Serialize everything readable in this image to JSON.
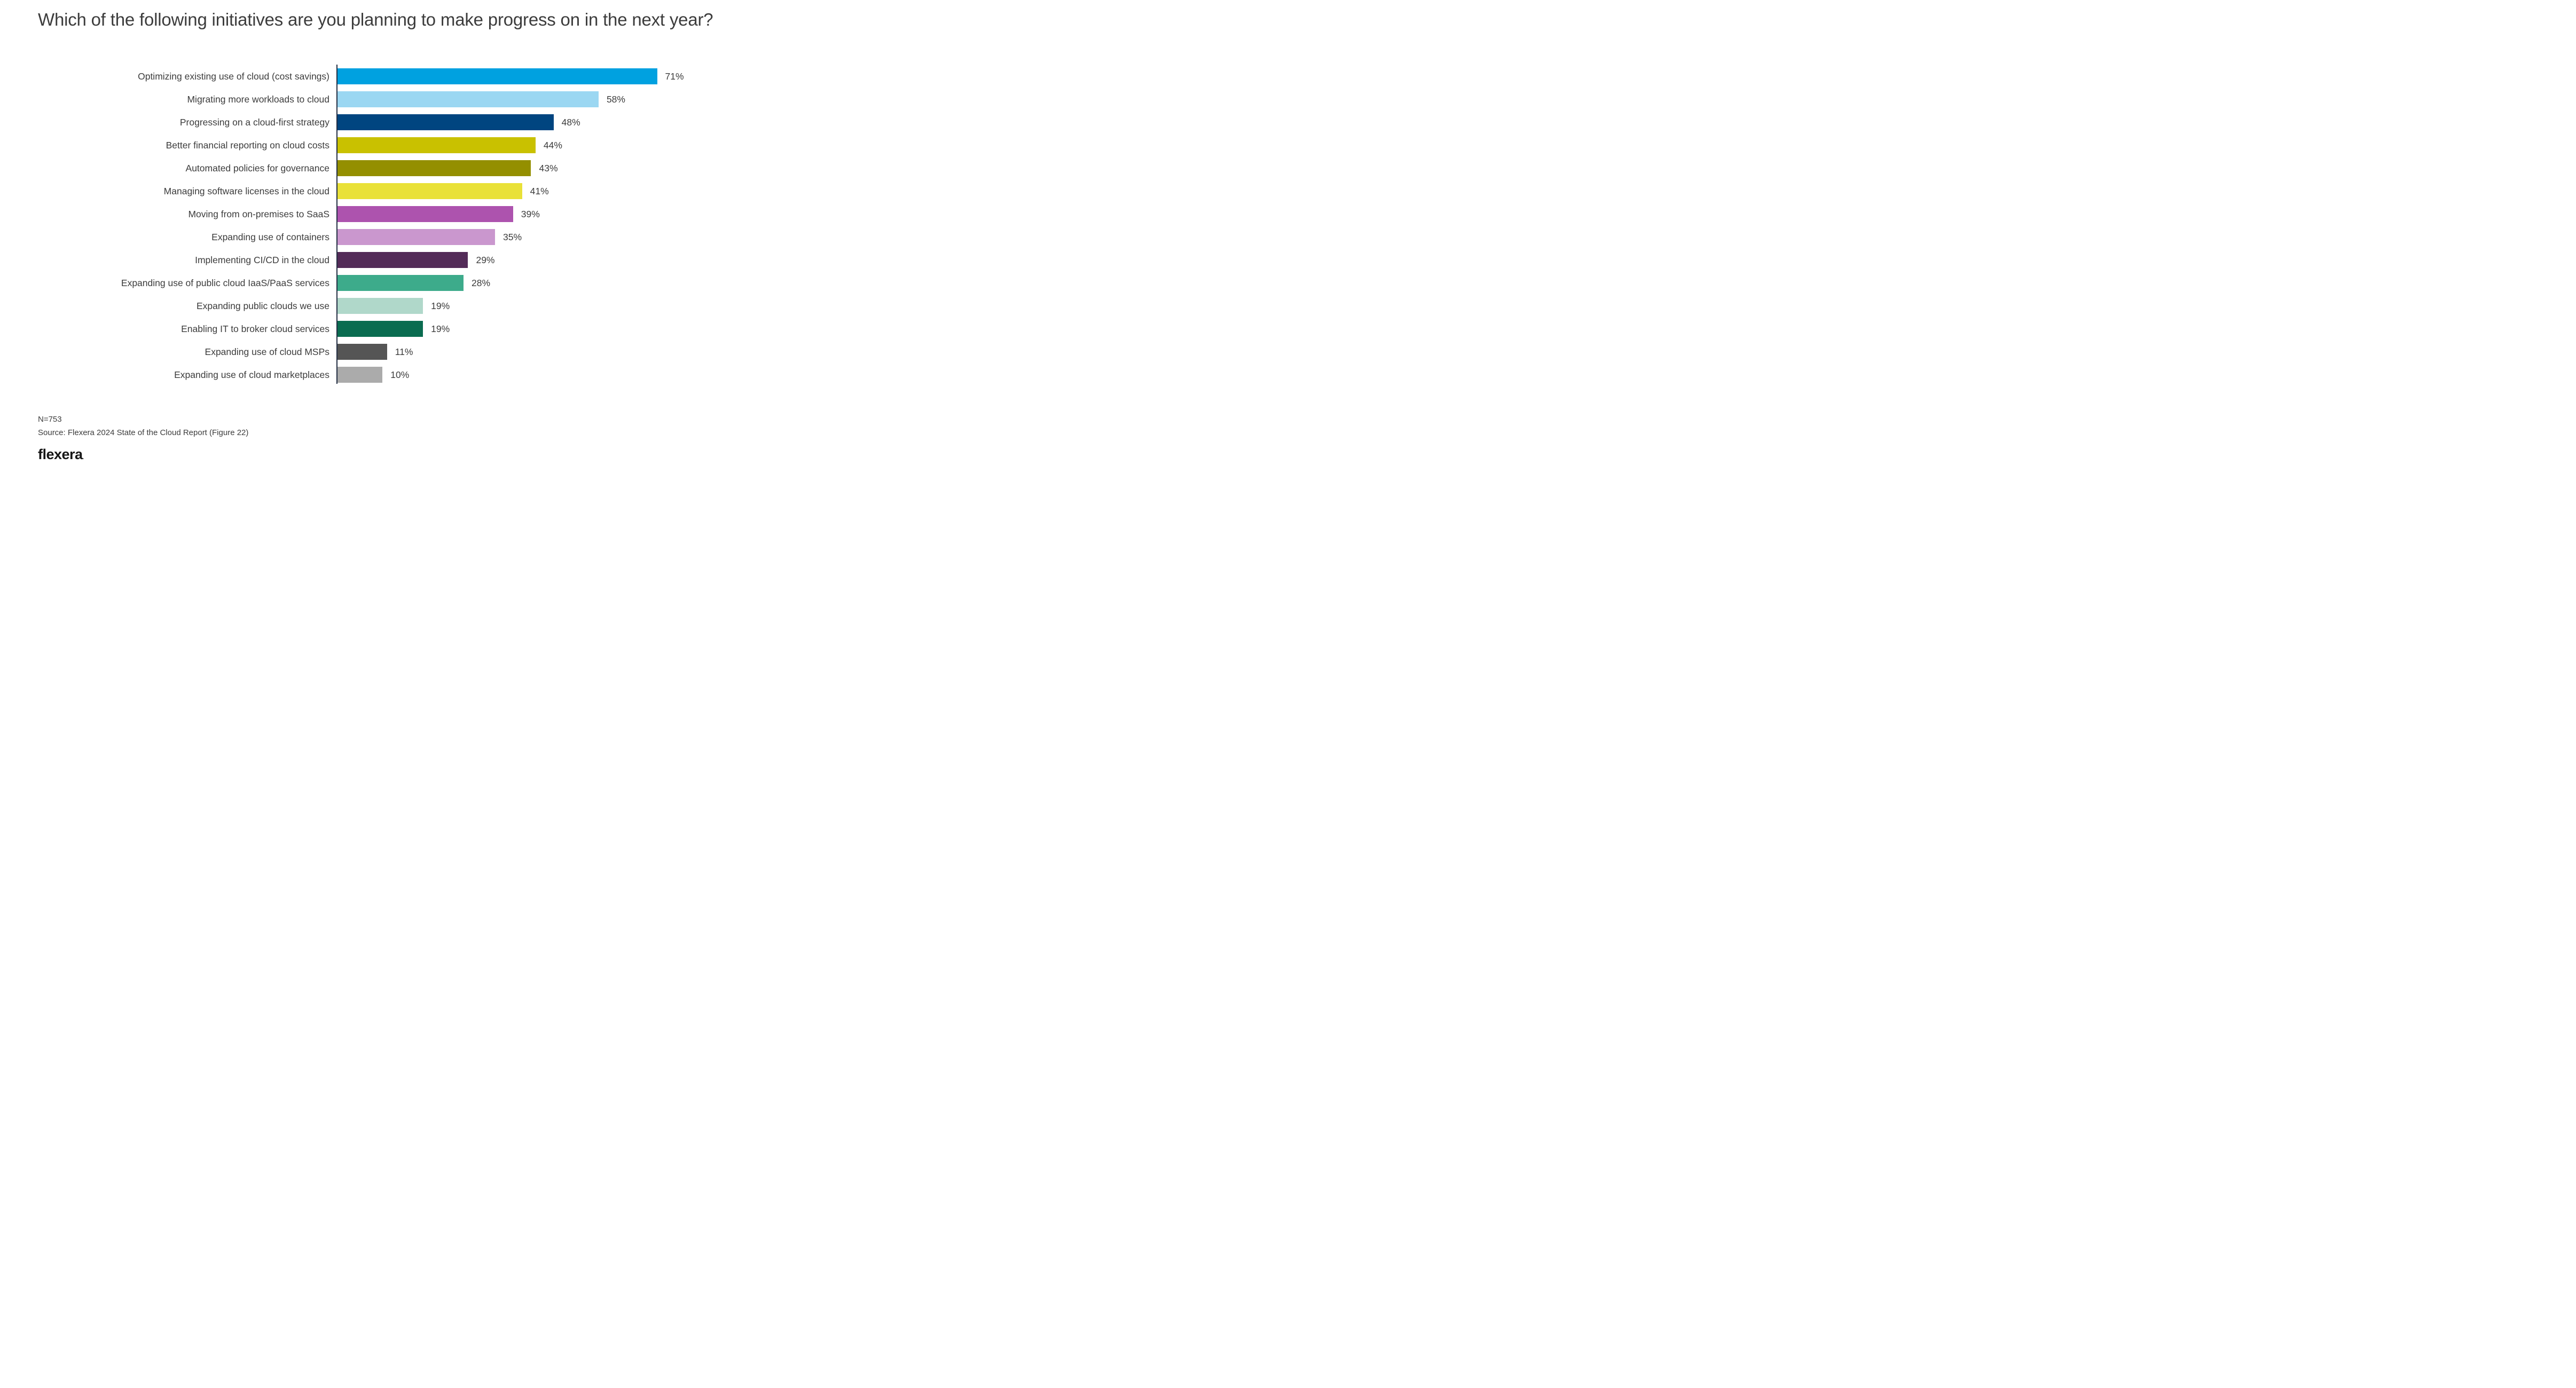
{
  "chart_data": {
    "type": "bar",
    "orientation": "horizontal",
    "title": "Which of the following initiatives are you planning to make progress on in the next year?",
    "xlabel": "",
    "ylabel": "",
    "xlim": [
      0,
      100
    ],
    "grid": false,
    "legend": false,
    "value_suffix": "%",
    "categories": [
      "Optimizing existing use of cloud (cost savings)",
      "Migrating more workloads to cloud",
      "Progressing on a cloud-first strategy",
      "Better financial reporting on cloud costs",
      "Automated policies for governance",
      "Managing software licenses in the cloud",
      "Moving from on-premises to SaaS",
      "Expanding use of containers",
      "Implementing CI/CD in the cloud",
      "Expanding use of public cloud IaaS/PaaS services",
      "Expanding public clouds we use",
      "Enabling IT to broker cloud services",
      "Expanding use of cloud MSPs",
      "Expanding use of cloud marketplaces"
    ],
    "values": [
      71,
      58,
      48,
      44,
      43,
      41,
      39,
      35,
      29,
      28,
      19,
      19,
      11,
      10
    ],
    "bar_colors": [
      "#00A1E0",
      "#9BD7F2",
      "#004580",
      "#C9C100",
      "#948F00",
      "#E9E138",
      "#AD53AE",
      "#CA97CE",
      "#532B58",
      "#3DAB8B",
      "#B0D8CA",
      "#0A6C50",
      "#555555",
      "#ABABAB"
    ],
    "axis_line_color": "#222D42",
    "text_color": "#3C3C3C"
  },
  "footer": {
    "sample_size": "N=753",
    "source": "Source: Flexera 2024 State of the Cloud Report (Figure 22)",
    "logo_text": "flexera",
    "logo_mark": "."
  }
}
